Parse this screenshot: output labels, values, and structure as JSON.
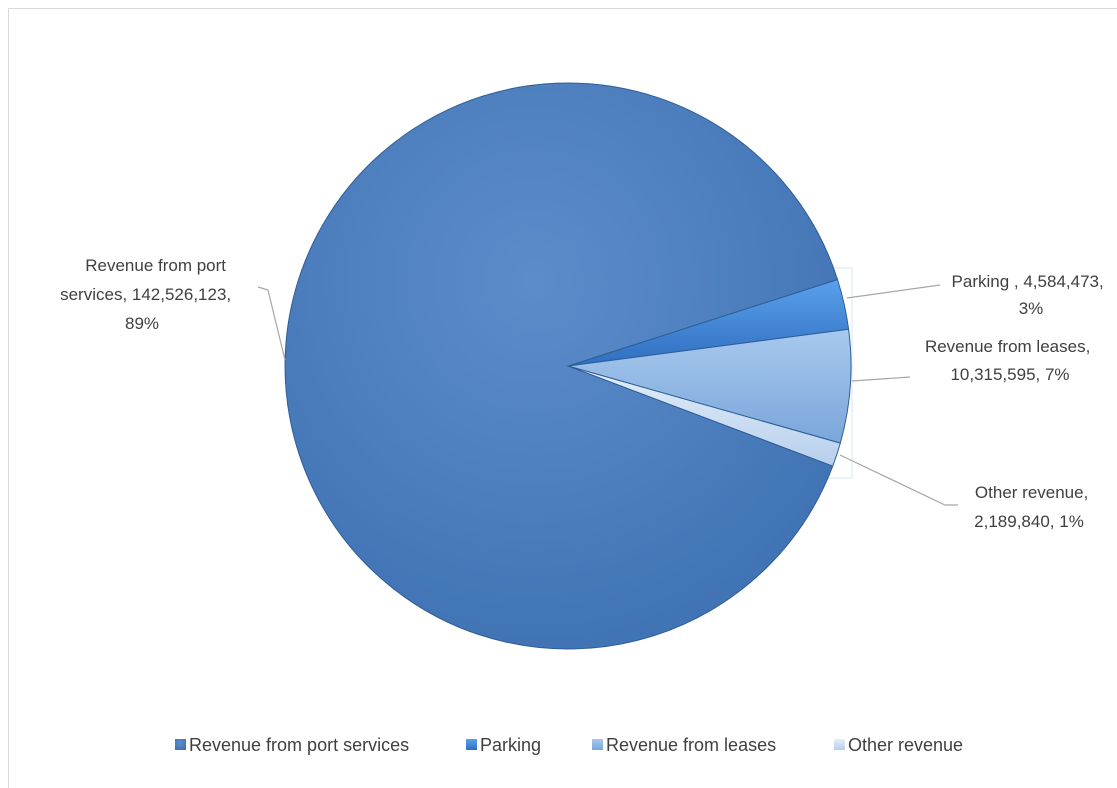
{
  "chart_data": {
    "type": "pie",
    "title": "",
    "slices": [
      {
        "name": "Revenue from port services",
        "value": 142526123,
        "percent": "89%",
        "label_lines": [
          "Revenue from port",
          "services, 142,526,123,",
          "89%"
        ],
        "color": "#4d7fbf"
      },
      {
        "name": "Parking",
        "value": 4584473,
        "percent": "3%",
        "label_lines": [
          "Parking , 4,584,473,",
          "3%"
        ],
        "color": "#3f84d6"
      },
      {
        "name": "Revenue from leases",
        "value": 10315595,
        "percent": "7%",
        "label_lines": [
          "Revenue from leases,",
          "10,315,595, 7%"
        ],
        "color": "#8fb8e6"
      },
      {
        "name": "Other revenue",
        "value": 2189840,
        "percent": "1%",
        "label_lines": [
          "Other revenue,",
          "2,189,840, 1%"
        ],
        "color": "#c9dcf2"
      }
    ],
    "legend": {
      "position": "bottom",
      "entries": [
        "Revenue from port services",
        "Parking",
        "Revenue from leases",
        "Other revenue"
      ]
    }
  }
}
